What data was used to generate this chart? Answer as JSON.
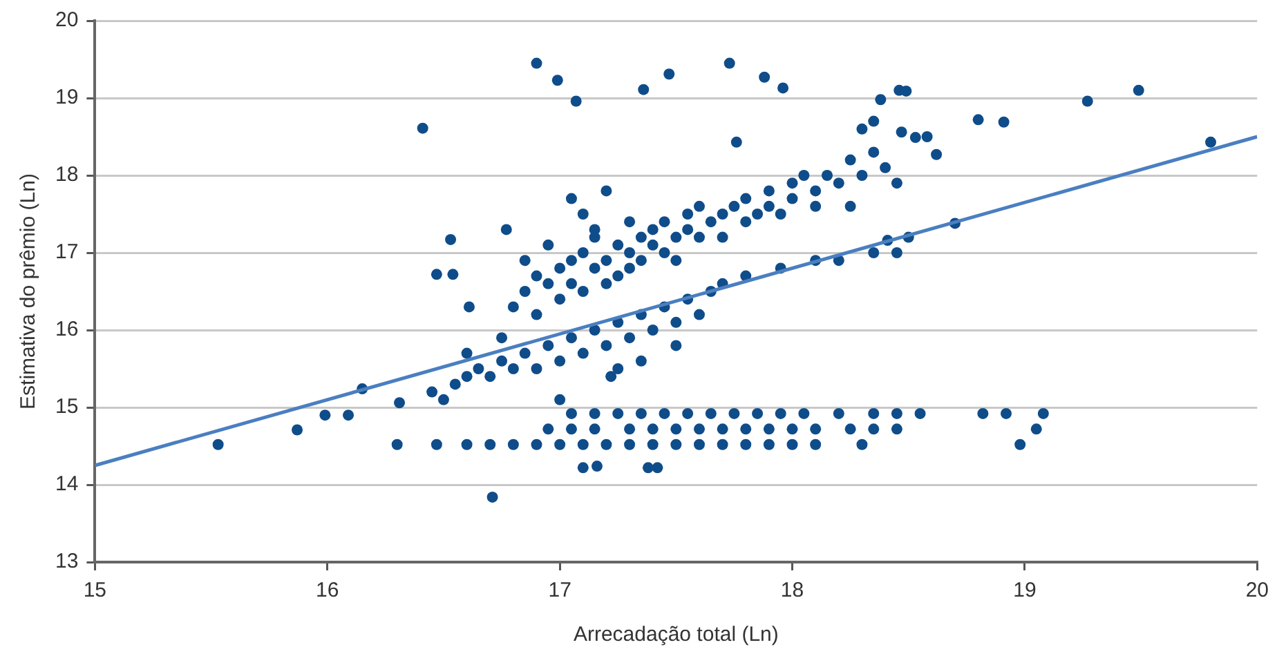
{
  "chart_data": {
    "type": "scatter",
    "xlabel": "Arrecadação total (Ln)",
    "ylabel": "Estimativa do prêmio (Ln)",
    "xlim": [
      15,
      20
    ],
    "ylim": [
      13,
      20
    ],
    "xticks": [
      15,
      16,
      17,
      18,
      19,
      20
    ],
    "yticks": [
      13,
      14,
      15,
      16,
      17,
      18,
      19,
      20
    ],
    "grid": "y",
    "legend": false,
    "marker": "circle",
    "series": [
      {
        "color": "#0f4c8a",
        "x": [
          15.53,
          15.87,
          15.99,
          16.09,
          16.15,
          16.31,
          16.41,
          16.47,
          16.54,
          16.53,
          16.61,
          16.77,
          16.9,
          16.99,
          17.07,
          17.36,
          17.47,
          17.73,
          17.88,
          17.96,
          17.76,
          18.38,
          18.46,
          18.49,
          18.8,
          18.91,
          19.27,
          19.49,
          19.8,
          18.47,
          18.53,
          18.58,
          18.62,
          18.7,
          18.41,
          16.75,
          16.8,
          16.85,
          16.9,
          16.9,
          16.95,
          17.0,
          17.0,
          17.05,
          17.05,
          17.1,
          17.1,
          17.15,
          17.15,
          17.2,
          17.2,
          17.25,
          17.25,
          17.3,
          17.3,
          17.35,
          17.35,
          17.4,
          17.4,
          17.45,
          17.45,
          17.5,
          17.5,
          17.55,
          17.55,
          17.6,
          17.6,
          17.65,
          17.7,
          17.7,
          17.75,
          17.8,
          17.8,
          17.85,
          17.9,
          17.9,
          17.95,
          18.0,
          18.0,
          18.05,
          18.1,
          18.1,
          18.15,
          18.2,
          18.25,
          18.3,
          18.35,
          18.3,
          18.35,
          18.4,
          18.45,
          18.25,
          17.2,
          17.3,
          16.95,
          17.1,
          17.15,
          16.85,
          17.05,
          16.6,
          16.65,
          16.7,
          16.75,
          16.8,
          16.85,
          16.9,
          16.95,
          17.0,
          17.05,
          17.1,
          17.15,
          17.2,
          17.25,
          17.3,
          17.35,
          17.4,
          17.45,
          17.5,
          17.55,
          17.6,
          17.65,
          17.7,
          17.25,
          17.35,
          17.5,
          16.55,
          16.5,
          16.45,
          16.6,
          17.0,
          17.22,
          17.95,
          18.1,
          18.2,
          18.35,
          18.45,
          18.5,
          17.8,
          17.05,
          17.15,
          17.25,
          17.35,
          17.45,
          17.55,
          17.65,
          17.75,
          17.85,
          17.95,
          18.05,
          18.2,
          18.35,
          18.45,
          18.55,
          18.82,
          18.92,
          19.08,
          16.95,
          17.05,
          17.15,
          17.3,
          17.4,
          17.5,
          17.6,
          17.7,
          17.8,
          17.9,
          18.0,
          18.1,
          18.25,
          18.35,
          18.45,
          19.05,
          16.3,
          16.47,
          16.6,
          16.7,
          16.8,
          16.9,
          17.0,
          17.1,
          17.2,
          17.3,
          17.4,
          17.5,
          17.6,
          17.7,
          17.8,
          17.9,
          18.0,
          18.1,
          18.3,
          18.98,
          16.71,
          17.1,
          17.16,
          17.38,
          17.42
        ],
        "values": [
          14.52,
          14.71,
          14.9,
          14.9,
          15.24,
          15.06,
          18.61,
          16.72,
          16.72,
          17.17,
          16.3,
          17.3,
          19.45,
          19.23,
          18.96,
          19.11,
          19.31,
          19.45,
          19.27,
          19.13,
          18.43,
          18.98,
          19.1,
          19.09,
          18.72,
          18.69,
          18.96,
          19.1,
          18.43,
          18.56,
          18.49,
          18.5,
          18.27,
          17.38,
          17.16,
          15.9,
          16.3,
          16.5,
          16.2,
          16.7,
          16.6,
          16.8,
          16.4,
          16.9,
          16.6,
          17.0,
          16.5,
          16.8,
          17.2,
          16.9,
          16.6,
          17.1,
          16.7,
          17.0,
          16.8,
          17.2,
          16.9,
          17.1,
          17.3,
          17.0,
          17.4,
          17.2,
          16.9,
          17.3,
          17.5,
          17.2,
          17.6,
          17.4,
          17.5,
          17.2,
          17.6,
          17.4,
          17.7,
          17.5,
          17.8,
          17.6,
          17.5,
          17.9,
          17.7,
          18.0,
          17.8,
          17.6,
          18.0,
          17.9,
          18.2,
          18.0,
          18.3,
          18.6,
          18.7,
          18.1,
          17.9,
          17.6,
          17.8,
          17.4,
          17.1,
          17.5,
          17.3,
          16.9,
          17.7,
          15.4,
          15.5,
          15.4,
          15.6,
          15.5,
          15.7,
          15.5,
          15.8,
          15.6,
          15.9,
          15.7,
          16.0,
          15.8,
          16.1,
          15.9,
          16.2,
          16.0,
          16.3,
          16.1,
          16.4,
          16.2,
          16.5,
          16.6,
          15.5,
          15.6,
          15.8,
          15.3,
          15.1,
          15.2,
          15.7,
          15.1,
          15.4,
          16.8,
          16.9,
          16.9,
          17.0,
          17.0,
          17.2,
          16.7,
          14.92,
          14.92,
          14.92,
          14.92,
          14.92,
          14.92,
          14.92,
          14.92,
          14.92,
          14.92,
          14.92,
          14.92,
          14.92,
          14.92,
          14.92,
          14.92,
          14.92,
          14.92,
          14.72,
          14.72,
          14.72,
          14.72,
          14.72,
          14.72,
          14.72,
          14.72,
          14.72,
          14.72,
          14.72,
          14.72,
          14.72,
          14.72,
          14.72,
          14.72,
          14.52,
          14.52,
          14.52,
          14.52,
          14.52,
          14.52,
          14.52,
          14.52,
          14.52,
          14.52,
          14.52,
          14.52,
          14.52,
          14.52,
          14.52,
          14.52,
          14.52,
          14.52,
          14.52,
          14.52,
          13.84,
          14.22,
          14.24,
          14.22,
          14.22
        ]
      },
      {
        "type": "line",
        "color": "#4a7fc0",
        "marker": "none",
        "x": [
          15,
          20
        ],
        "values": [
          14.25,
          18.5
        ]
      }
    ]
  }
}
